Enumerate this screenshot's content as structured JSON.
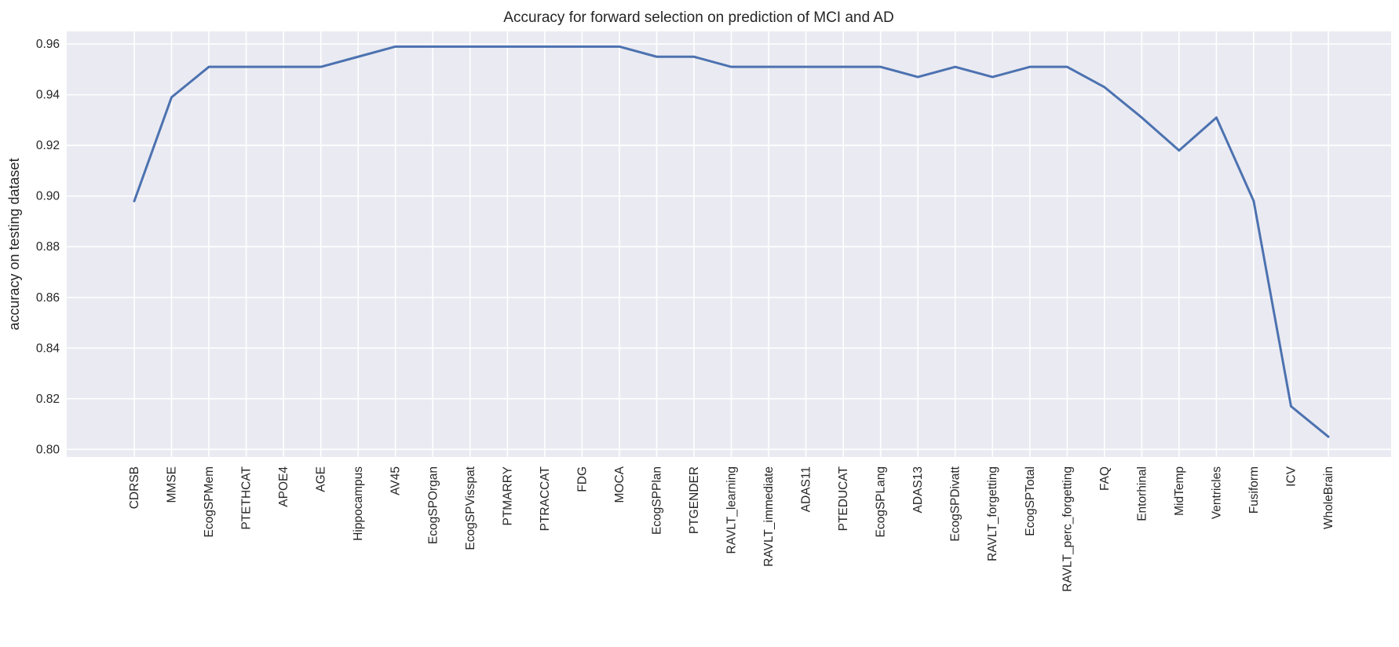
{
  "chart_data": {
    "type": "line",
    "title": "Accuracy for forward selection on prediction of MCI and AD",
    "xlabel": "",
    "ylabel": "accuracy on testing dataset",
    "categories": [
      "CDRSB",
      "MMSE",
      "EcogSPMem",
      "PTETHCAT",
      "APOE4",
      "AGE",
      "Hippocampus",
      "AV45",
      "EcogSPOrgan",
      "EcogSPVisspat",
      "PTMARRY",
      "PTRACCAT",
      "FDG",
      "MOCA",
      "EcogSPPlan",
      "PTGENDER",
      "RAVLT_learning",
      "RAVLT_immediate",
      "ADAS11",
      "PTEDUCAT",
      "EcogSPLang",
      "ADAS13",
      "EcogSPDivatt",
      "RAVLT_forgetting",
      "EcogSPTotal",
      "RAVLT_perc_forgetting",
      "FAQ",
      "Entorhinal",
      "MidTemp",
      "Ventricles",
      "Fusiform",
      "ICV",
      "WholeBrain"
    ],
    "series": [
      {
        "values": [
          0.898,
          0.939,
          0.951,
          0.951,
          0.951,
          0.951,
          0.955,
          0.959,
          0.959,
          0.959,
          0.959,
          0.959,
          0.959,
          0.959,
          0.955,
          0.955,
          0.951,
          0.951,
          0.951,
          0.951,
          0.951,
          0.947,
          0.951,
          0.947,
          0.951,
          0.951,
          0.943,
          0.931,
          0.918,
          0.931,
          0.898,
          0.817,
          0.805
        ]
      }
    ],
    "ylim": [
      0.797,
      0.965
    ],
    "yticks": [
      "0.80",
      "0.82",
      "0.84",
      "0.86",
      "0.88",
      "0.90",
      "0.92",
      "0.94",
      "0.96"
    ],
    "grid": true,
    "line_color": "#4c72b0",
    "background_color": "#eaeaf2"
  }
}
